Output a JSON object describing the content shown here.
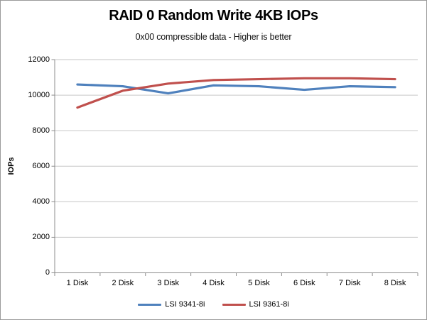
{
  "title": "RAID 0 Random Write 4KB IOPs",
  "subtitle": "0x00 compressible data - Higher is better",
  "chart_data": {
    "type": "line",
    "categories": [
      "1 Disk",
      "2 Disk",
      "3 Disk",
      "4 Disk",
      "5 Disk",
      "6 Disk",
      "7 Disk",
      "8 Disk"
    ],
    "series": [
      {
        "name": "LSI 9341-8i",
        "color": "#4F81BD",
        "values": [
          10600,
          10500,
          10100,
          10550,
          10500,
          10300,
          10500,
          10450
        ]
      },
      {
        "name": "LSI 9361-8i",
        "color": "#C0504D",
        "values": [
          9300,
          10250,
          10650,
          10850,
          10900,
          10950,
          10950,
          10900
        ]
      }
    ],
    "title": "RAID 0 Random Write 4KB IOPs",
    "subtitle": "0x00 compressible data - Higher is better",
    "xlabel": "",
    "ylabel": "IOPs",
    "ylim": [
      0,
      12000
    ],
    "yticks": [
      0,
      2000,
      4000,
      6000,
      8000,
      10000,
      12000
    ],
    "grid": true,
    "legend_position": "bottom"
  },
  "colors": {
    "series_blue": "#4F81BD",
    "series_red": "#C0504D",
    "gridline": "#C6C6C6",
    "axis": "#8C8C8C",
    "text": "#000000",
    "frame_border": "#9A9A9A"
  }
}
